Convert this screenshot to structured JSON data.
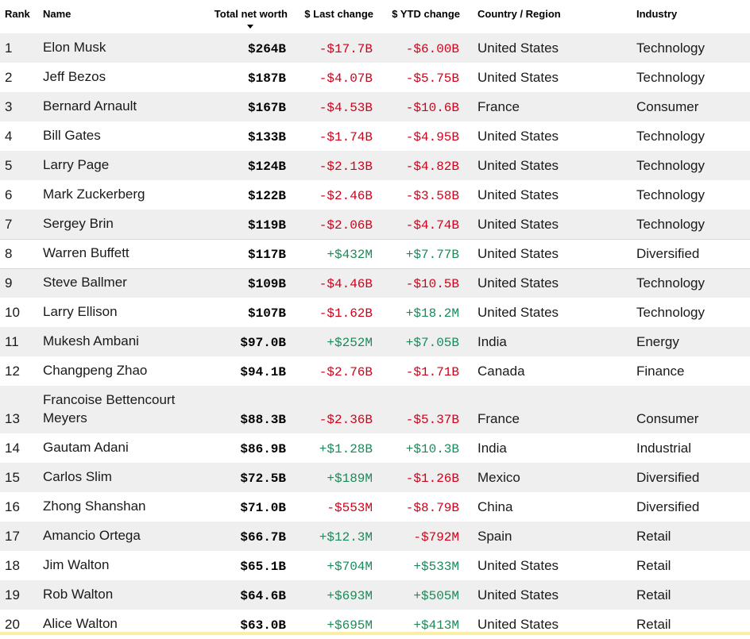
{
  "header": {
    "rank": "Rank",
    "name": "Name",
    "worth": "Total net worth",
    "last": "$ Last change",
    "ytd": "$ YTD change",
    "country": "Country / Region",
    "industry": "Industry"
  },
  "colors": {
    "negative": "#d0021b",
    "positive": "#1a8a5a",
    "stripe": "#efefef"
  },
  "rows": [
    {
      "rank": "1",
      "name": "Elon Musk",
      "worth": "$264B",
      "last": "-$17.7B",
      "ytd": "-$6.00B",
      "country": "United States",
      "industry": "Technology"
    },
    {
      "rank": "2",
      "name": "Jeff Bezos",
      "worth": "$187B",
      "last": "-$4.07B",
      "ytd": "-$5.75B",
      "country": "United States",
      "industry": "Technology"
    },
    {
      "rank": "3",
      "name": "Bernard Arnault",
      "worth": "$167B",
      "last": "-$4.53B",
      "ytd": "-$10.6B",
      "country": "France",
      "industry": "Consumer"
    },
    {
      "rank": "4",
      "name": "Bill Gates",
      "worth": "$133B",
      "last": "-$1.74B",
      "ytd": "-$4.95B",
      "country": "United States",
      "industry": "Technology"
    },
    {
      "rank": "5",
      "name": "Larry Page",
      "worth": "$124B",
      "last": "-$2.13B",
      "ytd": "-$4.82B",
      "country": "United States",
      "industry": "Technology"
    },
    {
      "rank": "6",
      "name": "Mark Zuckerberg",
      "worth": "$122B",
      "last": "-$2.46B",
      "ytd": "-$3.58B",
      "country": "United States",
      "industry": "Technology"
    },
    {
      "rank": "7",
      "name": "Sergey Brin",
      "worth": "$119B",
      "last": "-$2.06B",
      "ytd": "-$4.74B",
      "country": "United States",
      "industry": "Technology"
    },
    {
      "rank": "8",
      "name": "Warren Buffett",
      "worth": "$117B",
      "last": "+$432M",
      "ytd": "+$7.77B",
      "country": "United States",
      "industry": "Diversified"
    },
    {
      "rank": "9",
      "name": "Steve Ballmer",
      "worth": "$109B",
      "last": "-$4.46B",
      "ytd": "-$10.5B",
      "country": "United States",
      "industry": "Technology"
    },
    {
      "rank": "10",
      "name": "Larry Ellison",
      "worth": "$107B",
      "last": "-$1.62B",
      "ytd": "+$18.2M",
      "country": "United States",
      "industry": "Technology"
    },
    {
      "rank": "11",
      "name": "Mukesh Ambani",
      "worth": "$97.0B",
      "last": "+$252M",
      "ytd": "+$7.05B",
      "country": "India",
      "industry": "Energy"
    },
    {
      "rank": "12",
      "name": "Changpeng Zhao",
      "worth": "$94.1B",
      "last": "-$2.76B",
      "ytd": "-$1.71B",
      "country": "Canada",
      "industry": "Finance"
    },
    {
      "rank": "13",
      "name": "Francoise Bettencourt Meyers",
      "name_line1": "Francoise Bettencourt",
      "name_line2": "Meyers",
      "worth": "$88.3B",
      "last": "-$2.36B",
      "ytd": "-$5.37B",
      "country": "France",
      "industry": "Consumer"
    },
    {
      "rank": "14",
      "name": "Gautam Adani",
      "worth": "$86.9B",
      "last": "+$1.28B",
      "ytd": "+$10.3B",
      "country": "India",
      "industry": "Industrial"
    },
    {
      "rank": "15",
      "name": "Carlos Slim",
      "worth": "$72.5B",
      "last": "+$189M",
      "ytd": "-$1.26B",
      "country": "Mexico",
      "industry": "Diversified"
    },
    {
      "rank": "16",
      "name": "Zhong Shanshan",
      "worth": "$71.0B",
      "last": "-$553M",
      "ytd": "-$8.79B",
      "country": "China",
      "industry": "Diversified"
    },
    {
      "rank": "17",
      "name": "Amancio Ortega",
      "worth": "$66.7B",
      "last": "+$12.3M",
      "ytd": "-$792M",
      "country": "Spain",
      "industry": "Retail"
    },
    {
      "rank": "18",
      "name": "Jim Walton",
      "worth": "$65.1B",
      "last": "+$704M",
      "ytd": "+$533M",
      "country": "United States",
      "industry": "Retail"
    },
    {
      "rank": "19",
      "name": "Rob Walton",
      "worth": "$64.6B",
      "last": "+$693M",
      "ytd": "+$505M",
      "country": "United States",
      "industry": "Retail"
    },
    {
      "rank": "20",
      "name": "Alice Walton",
      "worth": "$63.0B",
      "last": "+$695M",
      "ytd": "+$413M",
      "country": "United States",
      "industry": "Retail"
    }
  ]
}
